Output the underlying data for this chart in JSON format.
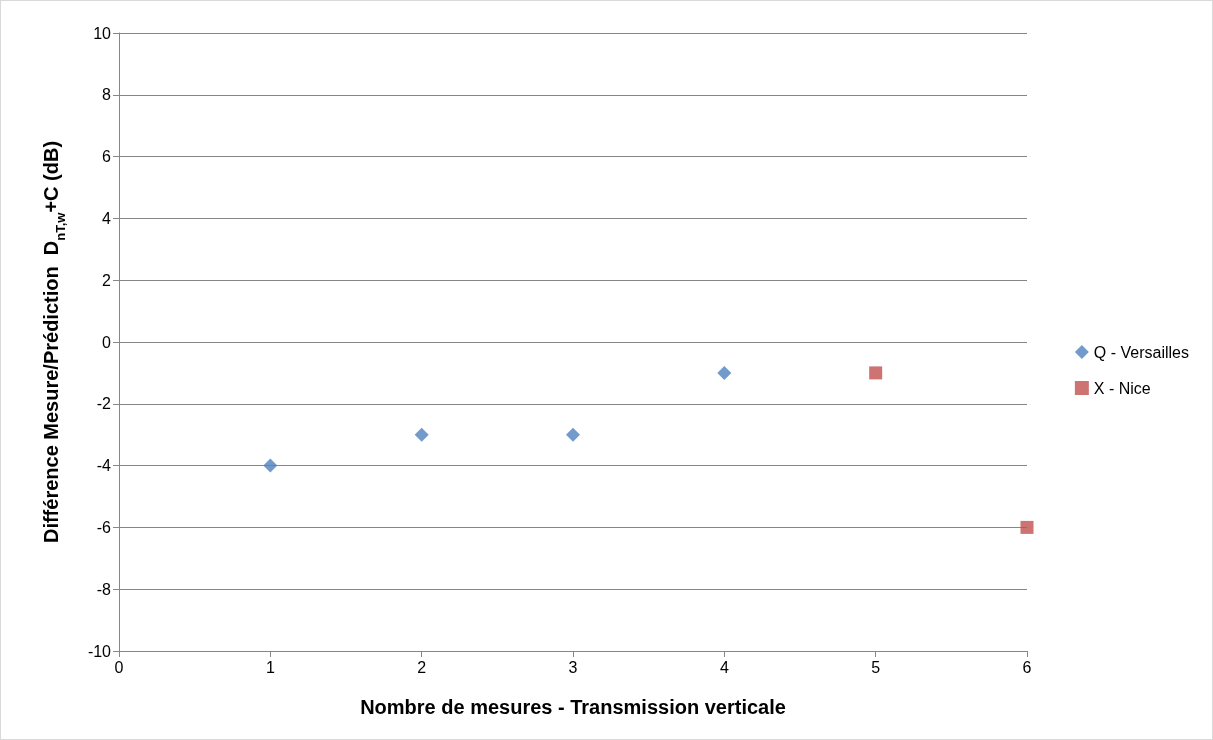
{
  "chart_data": {
    "type": "scatter",
    "xlabel": "Nombre de mesures - Transmission verticale",
    "ylabel": "Différence Mesure/Prédiction  D$_{nT,w}$+C (dB)",
    "series": [
      {
        "name": "Q - Versailles",
        "color": "#4f81bd",
        "marker": "diamond",
        "x": [
          1,
          2,
          3,
          4
        ],
        "values": [
          -4,
          -3,
          -3,
          -1
        ]
      },
      {
        "name": "X - Nice",
        "color": "#c0504d",
        "marker": "square",
        "x": [
          5,
          6
        ],
        "values": [
          -1,
          -6
        ]
      }
    ],
    "xlim": [
      0,
      6
    ],
    "xticks": [
      0,
      1,
      2,
      3,
      4,
      5,
      6
    ],
    "ylim": [
      -10,
      10
    ],
    "yticks": [
      -10,
      -8,
      -6,
      -4,
      -2,
      0,
      2,
      4,
      6,
      8,
      10
    ],
    "grid": "y",
    "legend": "right"
  }
}
